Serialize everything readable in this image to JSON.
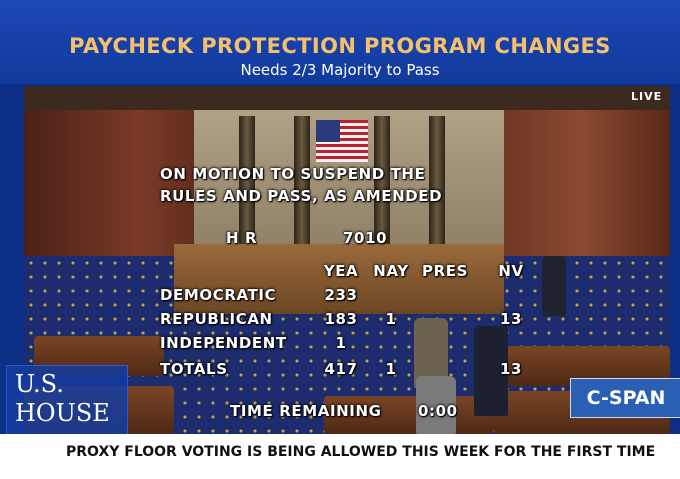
{
  "banner": {
    "headline": "PAYCHECK PROTECTION PROGRAM CHANGES",
    "subhead": "Needs 2/3 Majority to Pass"
  },
  "live_label": "LIVE",
  "vote": {
    "motion_line1": "ON MOTION TO SUSPEND THE",
    "motion_line2": "RULES AND PASS, AS AMENDED",
    "bill_prefix": "H R",
    "bill_number": "7010",
    "columns": [
      "YEA",
      "NAY",
      "PRES",
      "NV"
    ],
    "rows": [
      {
        "party": "DEMOCRATIC",
        "yea": "233",
        "nay": "",
        "pres": "",
        "nv": ""
      },
      {
        "party": "REPUBLICAN",
        "yea": "183",
        "nay": "1",
        "pres": "",
        "nv": "13"
      },
      {
        "party": "INDEPENDENT",
        "yea": "1",
        "nay": "",
        "pres": "",
        "nv": ""
      },
      {
        "party": "TOTALS",
        "yea": "417",
        "nay": "1",
        "pres": "",
        "nv": "13"
      }
    ],
    "time_label": "TIME REMAINING",
    "time_value": "0:00"
  },
  "logo": {
    "line1": "U.S.",
    "line2": "HOUSE"
  },
  "network": "C-SPAN",
  "crawl": "PROXY FLOOR VOTING IS BEING ALLOWED THIS WEEK FOR THE FIRST TIME",
  "colors": {
    "banner_blue": "#1c48b6",
    "headline_gold": "#f4c06a",
    "frame_blue": "#0e2f86"
  }
}
